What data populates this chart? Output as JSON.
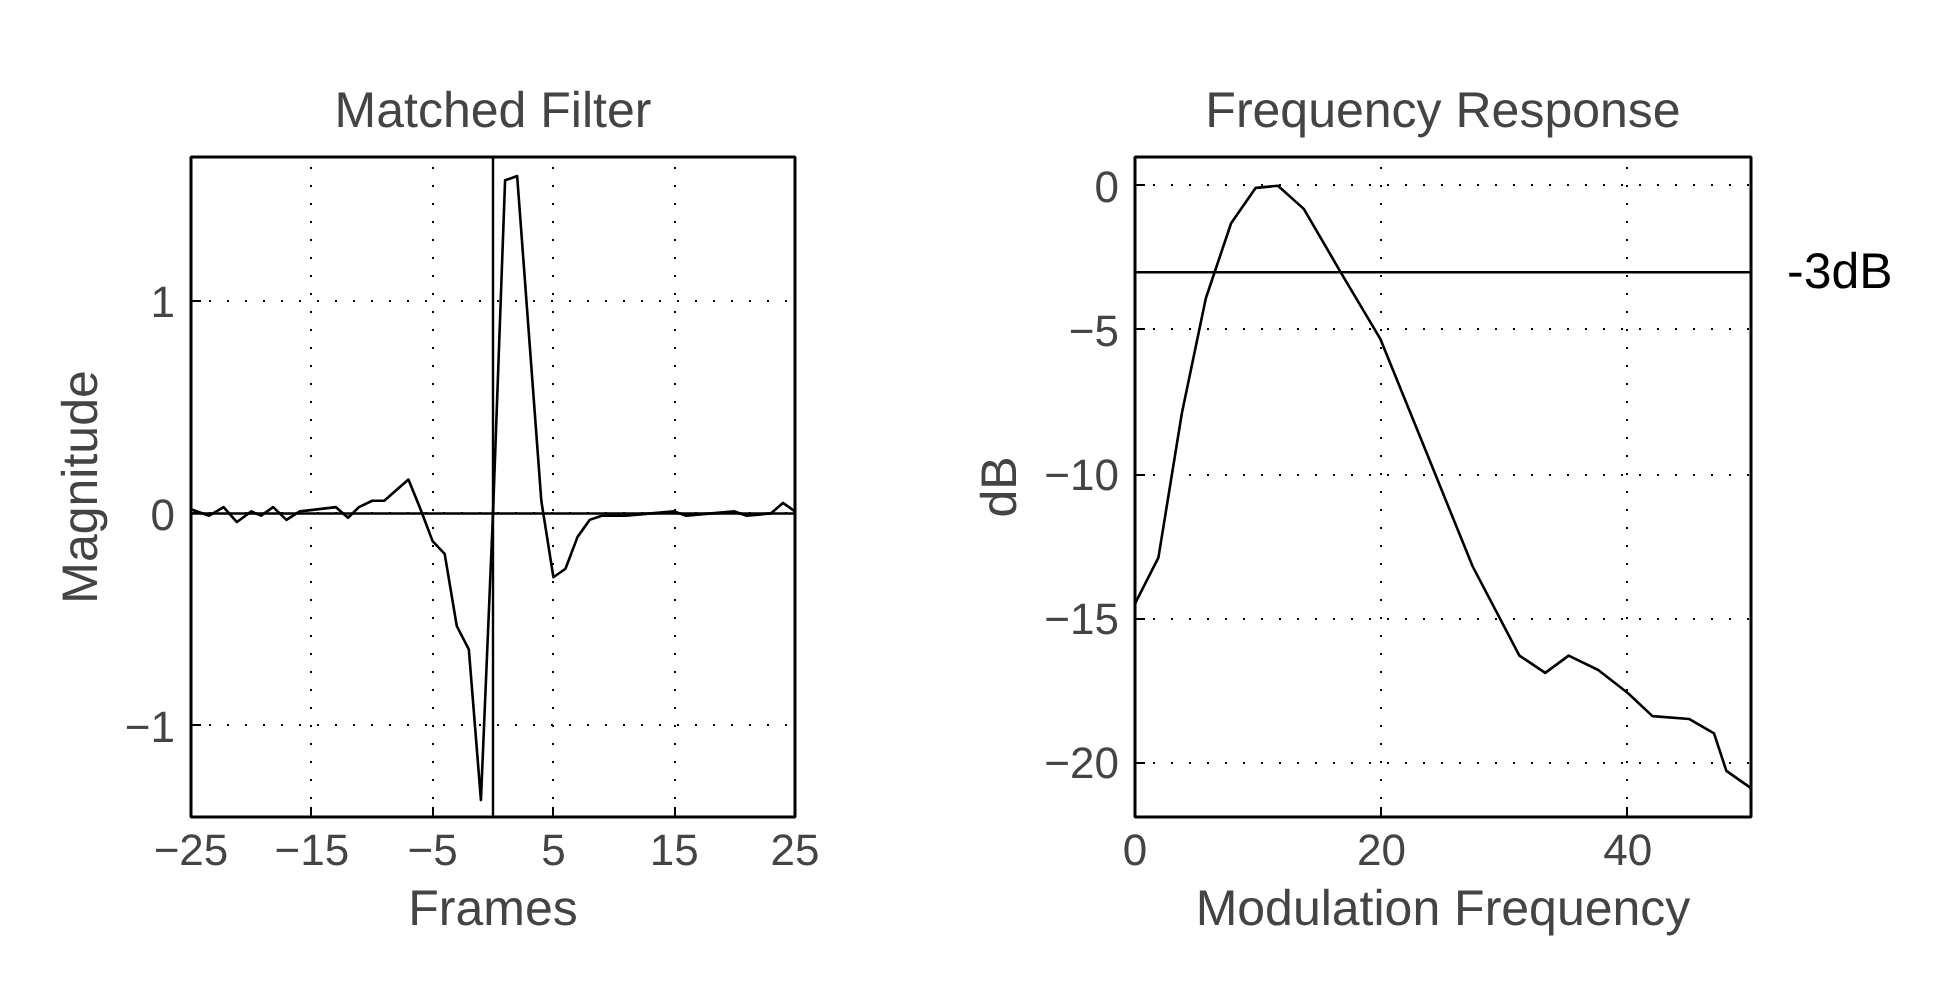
{
  "chart_data": [
    {
      "type": "line",
      "title": "Matched Filter",
      "xlabel": "Frames",
      "ylabel": "Magnitude",
      "x": [
        -25,
        -23.5,
        -22.3,
        -21.2,
        -20,
        -19.2,
        -18.2,
        -17.1,
        -16,
        -13,
        -12,
        -11.1,
        -10,
        -9,
        -7,
        -6,
        -5,
        -4,
        -3,
        -2,
        -1,
        0,
        1,
        2,
        4,
        5,
        6,
        7,
        8,
        9,
        11,
        15,
        16,
        20,
        21,
        23,
        24,
        25
      ],
      "series": [
        {
          "color": "#000000",
          "values": [
            0.02,
            -0.01,
            0.03,
            -0.04,
            0.01,
            -0.01,
            0.03,
            -0.03,
            0.01,
            0.03,
            -0.02,
            0.03,
            0.06,
            0.06,
            0.16,
            0.02,
            -0.13,
            -0.19,
            -0.53,
            -0.64,
            -1.35,
            0,
            1.57,
            1.59,
            0.06,
            -0.3,
            -0.26,
            -0.11,
            -0.03,
            -0.01,
            -0.01,
            0.01,
            -0.01,
            0.01,
            -0.01,
            0,
            0.05,
            0.01
          ]
        }
      ],
      "xlim": [
        -25,
        25
      ],
      "ylim": [
        -1.43,
        1.68
      ],
      "xticks": [
        {
          "value": -25,
          "label": "−25"
        },
        {
          "value": -15,
          "label": "−15"
        },
        {
          "value": -5,
          "label": "−5"
        },
        5,
        15,
        25
      ],
      "yticks": [
        {
          "value": -1,
          "label": "−1"
        },
        0,
        1
      ],
      "ref_lines": [
        {
          "axis": "y",
          "value": 0,
          "color": "#000000"
        },
        {
          "axis": "x",
          "value": 0,
          "color": "#000000"
        }
      ],
      "grid": true,
      "marker": "none",
      "line_style": "solid"
    },
    {
      "type": "line",
      "title": "Frequency Response",
      "xlabel": "Modulation Frequency",
      "ylabel": "dB",
      "x": [
        0,
        1.9,
        3.8,
        5.75,
        7.8,
        9.8,
        11.6,
        13.7,
        16.7,
        19.9,
        23.7,
        27.4,
        31.2,
        33.3,
        35.2,
        37.6,
        40,
        42,
        45,
        47,
        48,
        50
      ],
      "series": [
        {
          "color": "#000000",
          "values": [
            -14.5,
            -12.9,
            -7.9,
            -3.9,
            -1.3,
            -0.07,
            0,
            -0.8,
            -3,
            -5.3,
            -9.3,
            -13.2,
            -16.3,
            -16.9,
            -16.3,
            -16.8,
            -17.6,
            -18.4,
            -18.5,
            -19,
            -20.3,
            -20.9
          ]
        }
      ],
      "xlim": [
        0,
        50
      ],
      "ylim": [
        -21.9,
        1.0
      ],
      "xticks": [
        0,
        20,
        40
      ],
      "yticks": [
        {
          "value": -20,
          "label": "−20"
        },
        {
          "value": -15,
          "label": "−15"
        },
        {
          "value": -10,
          "label": "−10"
        },
        {
          "value": -5,
          "label": "−5"
        },
        0
      ],
      "ref_lines": [
        {
          "axis": "y",
          "value": -3,
          "label": "-3dB",
          "color": "#000000"
        }
      ],
      "grid": true,
      "marker": "none",
      "line_style": "solid"
    }
  ]
}
